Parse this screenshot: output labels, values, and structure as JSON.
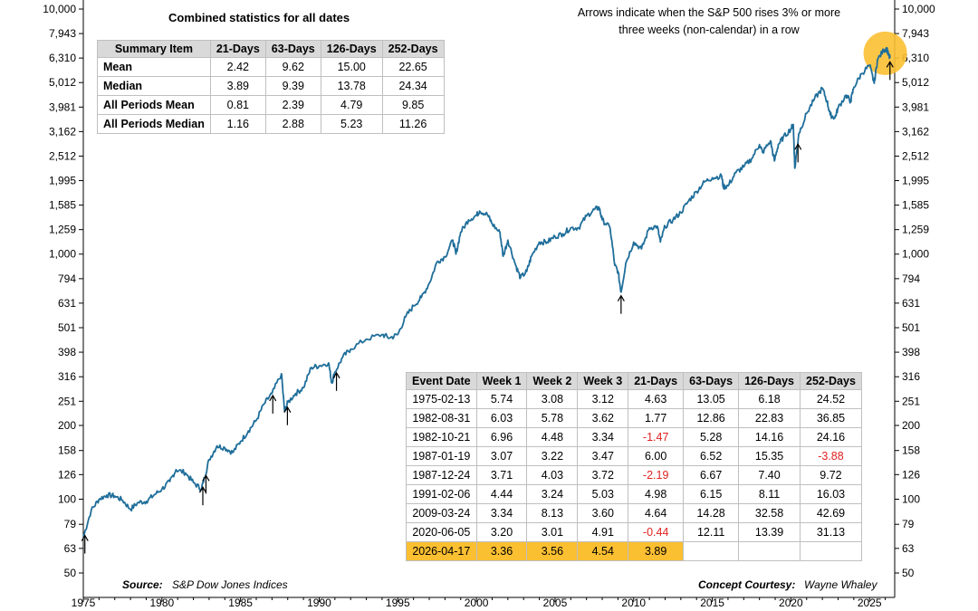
{
  "chart_data": {
    "type": "line",
    "title": "",
    "xlabel": "",
    "ylabel": "",
    "y_scale": "log",
    "ylim": [
      50,
      10000
    ],
    "xlim": [
      1975,
      2026.6
    ],
    "y_ticks": [
      "50",
      "63",
      "79",
      "100",
      "126",
      "158",
      "200",
      "251",
      "316",
      "398",
      "501",
      "631",
      "794",
      "1,000",
      "1,259",
      "1,585",
      "1,995",
      "2,512",
      "3,162",
      "3,981",
      "5,012",
      "6,310",
      "7,943",
      "10,000"
    ],
    "y_tick_values": [
      50,
      63,
      79,
      100,
      126,
      158,
      200,
      251,
      316,
      398,
      501,
      631,
      794,
      1000,
      1259,
      1585,
      1995,
      2512,
      3162,
      3981,
      5012,
      6310,
      7943,
      10000
    ],
    "x_ticks": [
      "1975",
      "1980",
      "1985",
      "1990",
      "1995",
      "2000",
      "2005",
      "2010",
      "2015",
      "2020",
      "2025"
    ],
    "x_tick_values": [
      1975,
      1980,
      1985,
      1990,
      1995,
      2000,
      2005,
      2010,
      2015,
      2020,
      2025
    ],
    "series": [
      {
        "name": "",
        "color": "#1f6e9a",
        "points": [
          [
            1975.0,
            70
          ],
          [
            1975.5,
            90
          ],
          [
            1976.0,
            100
          ],
          [
            1976.5,
            104
          ],
          [
            1977.0,
            103
          ],
          [
            1977.5,
            99
          ],
          [
            1978.0,
            91
          ],
          [
            1978.5,
            97
          ],
          [
            1979.0,
            98
          ],
          [
            1979.5,
            104
          ],
          [
            1980.0,
            110
          ],
          [
            1980.5,
            118
          ],
          [
            1980.9,
            132
          ],
          [
            1981.5,
            128
          ],
          [
            1982.0,
            117
          ],
          [
            1982.5,
            110
          ],
          [
            1982.7,
            122
          ],
          [
            1983.0,
            145
          ],
          [
            1983.5,
            165
          ],
          [
            1984.0,
            162
          ],
          [
            1984.5,
            155
          ],
          [
            1985.0,
            172
          ],
          [
            1985.5,
            190
          ],
          [
            1986.0,
            210
          ],
          [
            1986.5,
            245
          ],
          [
            1987.0,
            270
          ],
          [
            1987.6,
            325
          ],
          [
            1987.8,
            228
          ],
          [
            1988.0,
            248
          ],
          [
            1988.5,
            270
          ],
          [
            1989.0,
            285
          ],
          [
            1989.5,
            345
          ],
          [
            1990.0,
            350
          ],
          [
            1990.6,
            360
          ],
          [
            1990.8,
            298
          ],
          [
            1991.0,
            330
          ],
          [
            1991.5,
            380
          ],
          [
            1992.0,
            410
          ],
          [
            1993.0,
            450
          ],
          [
            1994.0,
            470
          ],
          [
            1994.5,
            455
          ],
          [
            1995.0,
            470
          ],
          [
            1995.5,
            555
          ],
          [
            1996.0,
            615
          ],
          [
            1996.5,
            665
          ],
          [
            1997.0,
            760
          ],
          [
            1997.5,
            930
          ],
          [
            1998.0,
            975
          ],
          [
            1998.5,
            1140
          ],
          [
            1998.7,
            1000
          ],
          [
            1999.0,
            1230
          ],
          [
            1999.5,
            1380
          ],
          [
            2000.0,
            1440
          ],
          [
            2000.2,
            1500
          ],
          [
            2000.7,
            1450
          ],
          [
            2001.0,
            1330
          ],
          [
            2001.5,
            1220
          ],
          [
            2001.7,
            980
          ],
          [
            2002.0,
            1140
          ],
          [
            2002.5,
            900
          ],
          [
            2002.8,
            800
          ],
          [
            2003.2,
            850
          ],
          [
            2003.5,
            980
          ],
          [
            2004.0,
            1120
          ],
          [
            2004.5,
            1120
          ],
          [
            2005.0,
            1180
          ],
          [
            2005.5,
            1210
          ],
          [
            2006.0,
            1280
          ],
          [
            2006.5,
            1280
          ],
          [
            2007.0,
            1430
          ],
          [
            2007.5,
            1520
          ],
          [
            2007.8,
            1550
          ],
          [
            2008.0,
            1380
          ],
          [
            2008.5,
            1280
          ],
          [
            2008.8,
            900
          ],
          [
            2009.0,
            850
          ],
          [
            2009.2,
            700
          ],
          [
            2009.5,
            920
          ],
          [
            2010.0,
            1120
          ],
          [
            2010.5,
            1050
          ],
          [
            2011.0,
            1280
          ],
          [
            2011.5,
            1300
          ],
          [
            2011.7,
            1120
          ],
          [
            2012.0,
            1300
          ],
          [
            2012.5,
            1380
          ],
          [
            2013.0,
            1480
          ],
          [
            2013.5,
            1650
          ],
          [
            2014.0,
            1800
          ],
          [
            2014.5,
            1970
          ],
          [
            2015.0,
            2050
          ],
          [
            2015.6,
            2080
          ],
          [
            2015.7,
            1880
          ],
          [
            2016.0,
            1900
          ],
          [
            2016.5,
            2150
          ],
          [
            2017.0,
            2270
          ],
          [
            2017.5,
            2450
          ],
          [
            2018.0,
            2800
          ],
          [
            2018.2,
            2600
          ],
          [
            2018.7,
            2900
          ],
          [
            2018.95,
            2400
          ],
          [
            2019.2,
            2800
          ],
          [
            2019.5,
            2980
          ],
          [
            2020.0,
            3250
          ],
          [
            2020.15,
            3380
          ],
          [
            2020.25,
            2240
          ],
          [
            2020.5,
            3100
          ],
          [
            2021.0,
            3750
          ],
          [
            2021.5,
            4300
          ],
          [
            2022.0,
            4750
          ],
          [
            2022.3,
            4200
          ],
          [
            2022.5,
            3700
          ],
          [
            2022.8,
            3600
          ],
          [
            2023.0,
            3950
          ],
          [
            2023.5,
            4450
          ],
          [
            2023.8,
            4200
          ],
          [
            2024.0,
            4800
          ],
          [
            2024.5,
            5450
          ],
          [
            2025.0,
            5900
          ],
          [
            2025.3,
            4980
          ],
          [
            2025.5,
            6200
          ],
          [
            2025.9,
            6800
          ],
          [
            2026.1,
            6900
          ],
          [
            2026.2,
            6500
          ],
          [
            2026.3,
            6300
          ]
        ]
      }
    ],
    "arrows": [
      1975.1,
      1982.6,
      1982.8,
      1987.05,
      1987.98,
      1991.1,
      2009.2,
      2020.45,
      2026.3
    ],
    "highlight_circle": {
      "x": 2026.0,
      "y": 6600,
      "color": "#fbbf32"
    }
  },
  "annotations": {
    "top_note_line1": "Arrows indicate when the S&P 500 rises 3% or more",
    "top_note_line2": "three weeks (non-calendar) in a row",
    "source_label": "Source:",
    "source_value": "S&P Dow Jones Indices",
    "courtesy_label": "Concept Courtesy:",
    "courtesy_value": "Wayne Whaley"
  },
  "summary": {
    "title": "Combined statistics for all dates",
    "headers": [
      "Summary Item",
      "21-Days",
      "63-Days",
      "126-Days",
      "252-Days"
    ],
    "rows": [
      [
        "Mean",
        "2.42",
        "9.62",
        "15.00",
        "22.65"
      ],
      [
        "Median",
        "3.89",
        "9.39",
        "13.78",
        "24.34"
      ],
      [
        "All Periods Mean",
        "0.81",
        "2.39",
        "4.79",
        "9.85"
      ],
      [
        "All Periods Median",
        "1.16",
        "2.88",
        "5.23",
        "11.26"
      ]
    ]
  },
  "events": {
    "headers": [
      "Event Date",
      "Week 1",
      "Week 2",
      "Week 3",
      "21-Days",
      "63-Days",
      "126-Days",
      "252-Days"
    ],
    "rows": [
      [
        "1975-02-13",
        "5.74",
        "3.08",
        "3.12",
        "4.63",
        "13.05",
        "6.18",
        "24.52"
      ],
      [
        "1982-08-31",
        "6.03",
        "5.78",
        "3.62",
        "1.77",
        "12.86",
        "22.83",
        "36.85"
      ],
      [
        "1982-10-21",
        "6.96",
        "4.48",
        "3.34",
        "-1.47",
        "5.28",
        "14.16",
        "24.16"
      ],
      [
        "1987-01-19",
        "3.07",
        "3.22",
        "3.47",
        "6.00",
        "6.52",
        "15.35",
        "-3.88"
      ],
      [
        "1987-12-24",
        "3.71",
        "4.03",
        "3.72",
        "-2.19",
        "6.67",
        "7.40",
        "9.72"
      ],
      [
        "1991-02-06",
        "4.44",
        "3.24",
        "5.03",
        "4.98",
        "6.15",
        "8.11",
        "16.03"
      ],
      [
        "2009-03-24",
        "3.34",
        "8.13",
        "3.60",
        "4.64",
        "14.28",
        "32.58",
        "42.69"
      ],
      [
        "2020-06-05",
        "3.20",
        "3.01",
        "4.91",
        "-0.44",
        "12.11",
        "13.39",
        "31.13"
      ],
      [
        "2026-04-17",
        "3.36",
        "3.56",
        "4.54",
        "3.89",
        "",
        "",
        ""
      ]
    ],
    "highlight_row": 8,
    "highlight_color": "#fbbf32",
    "negative_color": "#e02020"
  }
}
